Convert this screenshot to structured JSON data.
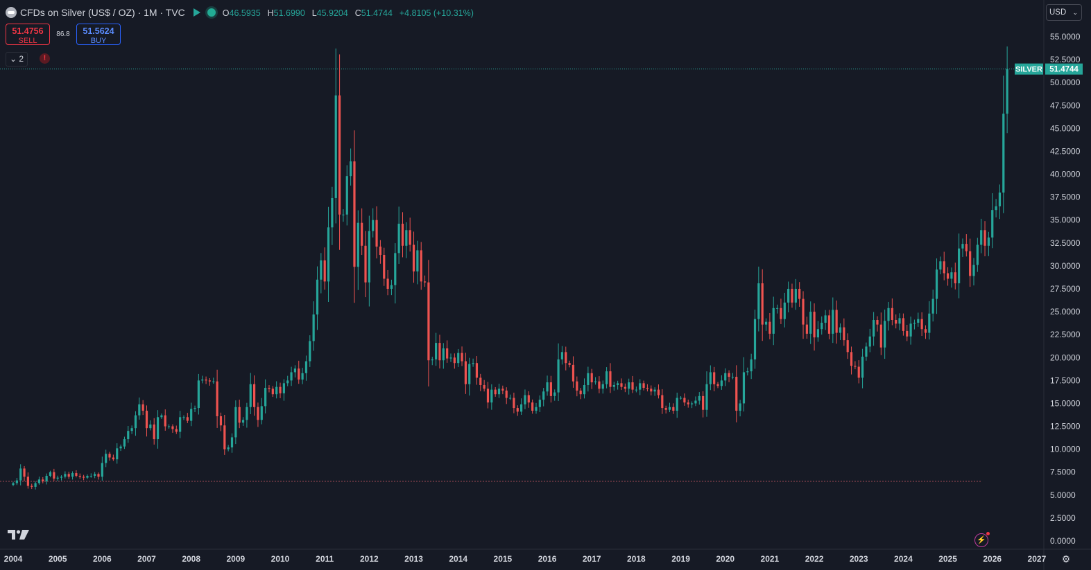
{
  "header": {
    "symbol": "CFDs on Silver (US$ / OZ) · 1M · TVC",
    "open_label": "O",
    "open": "46.5935",
    "high_label": "H",
    "high": "51.6990",
    "low_label": "L",
    "low": "45.9204",
    "close_label": "C",
    "close": "51.4744",
    "change": "+4.8105 (+10.31%)"
  },
  "trade": {
    "sell_price": "51.4756",
    "sell_label": "SELL",
    "spread": "86.8",
    "buy_price": "51.5624",
    "buy_label": "BUY"
  },
  "indicators_toggle": "2",
  "warning_icon": "!",
  "currency_select": "USD",
  "last_price_tag": {
    "symbol": "SILVER",
    "price": "51.4744"
  },
  "colors": {
    "up": "#26a69a",
    "down": "#ef5350",
    "background": "#161a25",
    "grid_text": "#d1d4dc",
    "last_line": "#26a69a",
    "ref_line": "#a04a55"
  },
  "chart_data": {
    "type": "candlestick",
    "interval": "1M",
    "y_ticks": [
      "55.0000",
      "52.5000",
      "50.0000",
      "47.5000",
      "45.0000",
      "42.5000",
      "40.0000",
      "37.5000",
      "35.0000",
      "32.5000",
      "30.0000",
      "27.5000",
      "25.0000",
      "22.5000",
      "20.0000",
      "17.5000",
      "15.0000",
      "12.5000",
      "10.0000",
      "7.5000",
      "5.0000",
      "2.5000",
      "0.0000"
    ],
    "ylim": [
      0,
      55
    ],
    "x_ticks": [
      "2004",
      "2005",
      "2006",
      "2007",
      "2008",
      "2009",
      "2010",
      "2011",
      "2012",
      "2013",
      "2014",
      "2015",
      "2016",
      "2017",
      "2018",
      "2019",
      "2020",
      "2021",
      "2022",
      "2023",
      "2024",
      "2025",
      "2026",
      "2027"
    ],
    "xlim": [
      2004.0,
      2027.0
    ],
    "last_price": 51.4744,
    "reference_line": 6.5,
    "first_month": "2004-01",
    "closes": [
      6.3,
      6.6,
      7.9,
      7.0,
      6.0,
      5.9,
      6.3,
      6.7,
      6.5,
      7.1,
      7.5,
      6.8,
      6.9,
      7.0,
      7.3,
      7.0,
      7.4,
      7.1,
      7.0,
      6.9,
      7.1,
      7.1,
      7.3,
      7.0,
      8.5,
      9.5,
      9.1,
      8.9,
      10.1,
      10.3,
      11.1,
      12.0,
      12.3,
      13.7,
      14.9,
      14.2,
      12.3,
      12.7,
      11.1,
      13.5,
      13.7,
      12.5,
      12.5,
      12.2,
      11.9,
      13.5,
      13.5,
      13.1,
      14.4,
      14.5,
      17.5,
      17.6,
      17.5,
      17.4,
      17.4,
      13.6,
      12.6,
      10.0,
      10.2,
      11.3,
      14.6,
      12.9,
      13.2,
      14.6,
      17.1,
      14.6,
      13.2,
      14.7,
      16.7,
      16.6,
      16.0,
      16.8,
      16.1,
      17.2,
      17.5,
      18.4,
      18.8,
      17.6,
      18.3,
      19.6,
      21.8,
      24.7,
      28.5,
      30.6,
      28.3,
      34.2,
      37.4,
      48.6,
      35.6,
      35.6,
      39.8,
      41.4,
      29.9,
      34.7,
      32.2,
      28.2,
      33.8,
      35.0,
      32.1,
      31.2,
      28.6,
      27.5,
      27.9,
      31.4,
      34.6,
      32.2,
      33.9,
      32.3,
      29.4,
      31.7,
      28.3,
      28.2,
      19.7,
      19.8,
      21.6,
      19.7,
      21.0,
      19.9,
      20.0,
      19.4,
      20.5,
      19.6,
      17.1,
      19.3,
      19.4,
      17.8,
      17.0,
      16.6,
      15.1,
      16.5,
      16.0,
      16.6,
      16.4,
      15.6,
      15.6,
      14.5,
      14.1,
      14.9,
      15.9,
      15.1,
      14.2,
      14.6,
      15.4,
      16.3,
      17.3,
      15.8,
      16.2,
      19.8,
      20.6,
      19.4,
      19.2,
      17.4,
      16.4,
      16.0,
      17.0,
      18.3,
      17.3,
      17.4,
      16.6,
      17.1,
      18.5,
      16.8,
      17.0,
      17.2,
      16.8,
      16.6,
      17.3,
      16.5,
      16.5,
      17.2,
      16.7,
      16.6,
      16.3,
      16.5,
      15.9,
      14.5,
      14.3,
      14.6,
      14.2,
      15.6,
      15.6,
      15.1,
      14.9,
      15.0,
      15.3,
      15.8,
      14.3,
      17.1,
      18.4,
      17.1,
      16.9,
      17.5,
      18.3,
      17.9,
      17.9,
      14.2,
      15.0,
      18.4,
      18.5,
      19.8,
      24.2,
      28.1,
      23.6,
      23.9,
      22.6,
      25.4,
      25.4,
      24.2,
      26.0,
      27.5,
      26.0,
      27.5,
      26.4,
      23.6,
      22.6,
      25.0,
      22.2,
      23.1,
      23.8,
      24.6,
      22.6,
      25.2,
      22.7,
      23.3,
      21.9,
      20.6,
      19.1,
      19.0,
      17.8,
      20.1,
      21.2,
      22.3,
      24.1,
      23.6,
      21.1,
      24.0,
      25.4,
      24.1,
      23.7,
      24.3,
      22.9,
      22.3,
      23.7,
      23.8,
      24.2,
      23.1,
      22.7,
      24.8,
      26.4,
      29.6,
      30.5,
      29.2,
      28.6,
      29.3,
      28.1,
      31.9,
      32.4,
      31.6,
      28.9,
      30.1,
      32.3,
      33.9,
      32.2,
      33.1,
      36.1,
      36.5,
      38.0,
      46.6,
      51.47
    ]
  }
}
